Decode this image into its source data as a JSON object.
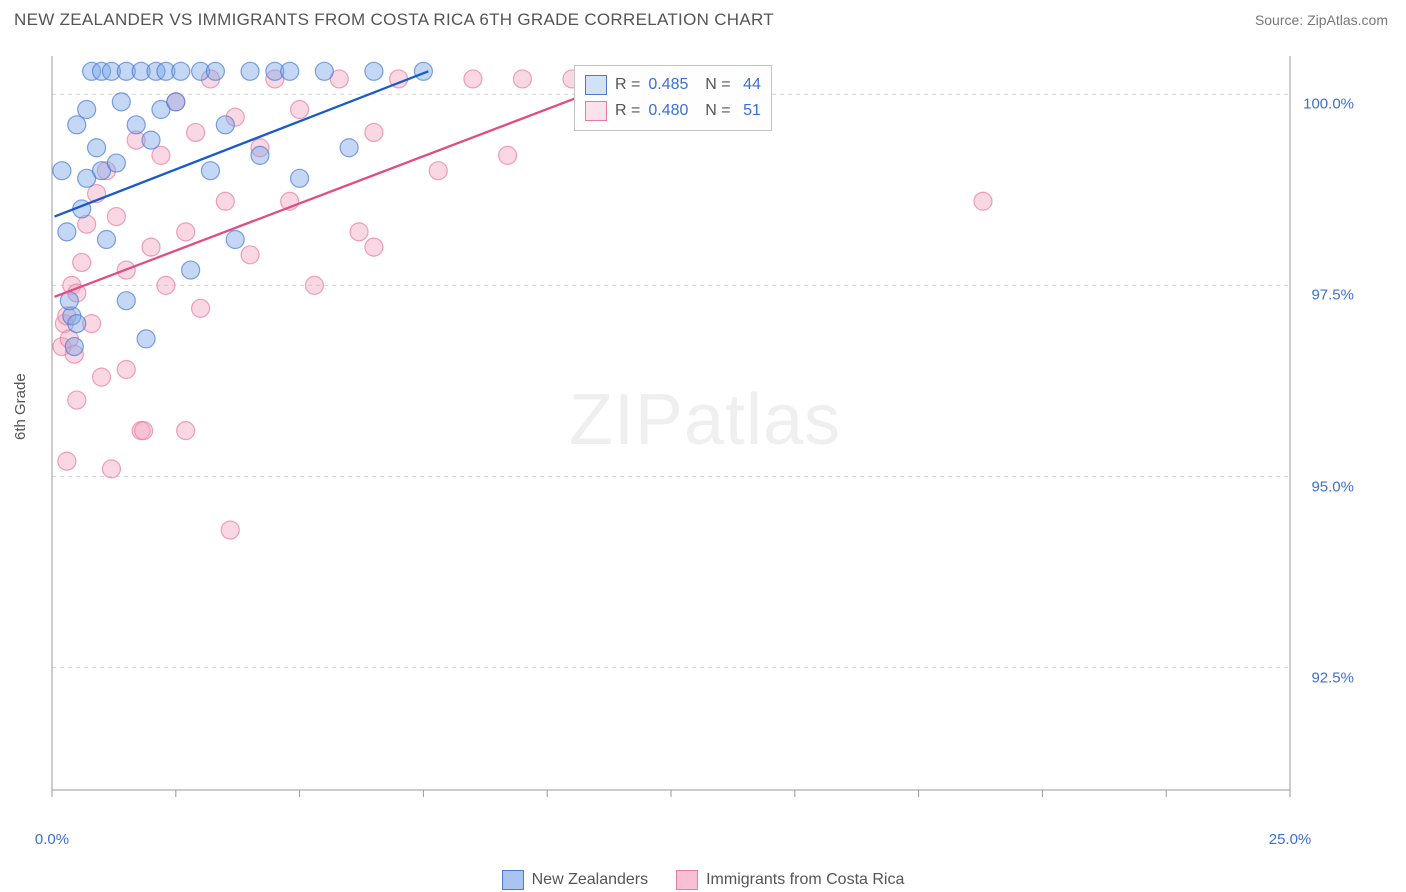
{
  "title": "NEW ZEALANDER VS IMMIGRANTS FROM COSTA RICA 6TH GRADE CORRELATION CHART",
  "source": "Source: ZipAtlas.com",
  "ylabel": "6th Grade",
  "watermark_bold": "ZIP",
  "watermark_thin": "atlas",
  "chart": {
    "type": "scatter",
    "xlim": [
      0,
      25
    ],
    "ylim": [
      90.9,
      100.5
    ],
    "ytick_labels": [
      "100.0%",
      "97.5%",
      "95.0%",
      "92.5%"
    ],
    "ytick_values": [
      100.0,
      97.5,
      95.0,
      92.5
    ],
    "xtick_values": [
      0,
      2.5,
      5,
      7.5,
      10,
      12.5,
      15,
      17.5,
      20,
      22.5,
      25
    ],
    "xtick_labels_shown": {
      "0": "0.0%",
      "25": "25.0%"
    },
    "grid_color": "#d6d6d6",
    "axis_color": "#999999",
    "background_color": "#ffffff",
    "marker_radius": 9,
    "marker_opacity": 0.45,
    "line_width": 2.3,
    "series": [
      {
        "name": "New Zealanders",
        "color_fill": "#7da9e8",
        "color_stroke": "#4a7bd0",
        "line_color": "#1959c9",
        "R": "0.485",
        "N": "44",
        "trend": {
          "x1": 0.05,
          "y1": 98.4,
          "x2": 7.6,
          "y2": 100.3
        },
        "points": [
          [
            0.2,
            99.0
          ],
          [
            0.3,
            98.2
          ],
          [
            0.4,
            97.1
          ],
          [
            0.35,
            97.3
          ],
          [
            0.45,
            96.7
          ],
          [
            0.5,
            99.6
          ],
          [
            0.5,
            97.0
          ],
          [
            0.6,
            98.5
          ],
          [
            0.7,
            98.9
          ],
          [
            0.7,
            99.8
          ],
          [
            0.8,
            100.3
          ],
          [
            0.9,
            99.3
          ],
          [
            1.0,
            100.3
          ],
          [
            1.0,
            99.0
          ],
          [
            1.1,
            98.1
          ],
          [
            1.2,
            100.3
          ],
          [
            1.3,
            99.1
          ],
          [
            1.4,
            99.9
          ],
          [
            1.5,
            100.3
          ],
          [
            1.5,
            97.3
          ],
          [
            1.7,
            99.6
          ],
          [
            1.8,
            100.3
          ],
          [
            1.9,
            96.8
          ],
          [
            2.0,
            99.4
          ],
          [
            2.1,
            100.3
          ],
          [
            2.2,
            99.8
          ],
          [
            2.3,
            100.3
          ],
          [
            2.5,
            99.9
          ],
          [
            2.6,
            100.3
          ],
          [
            2.8,
            97.7
          ],
          [
            3.0,
            100.3
          ],
          [
            3.2,
            99.0
          ],
          [
            3.3,
            100.3
          ],
          [
            3.5,
            99.6
          ],
          [
            3.7,
            98.1
          ],
          [
            4.0,
            100.3
          ],
          [
            4.2,
            99.2
          ],
          [
            4.5,
            100.3
          ],
          [
            4.8,
            100.3
          ],
          [
            5.0,
            98.9
          ],
          [
            5.5,
            100.3
          ],
          [
            6.0,
            99.3
          ],
          [
            6.5,
            100.3
          ],
          [
            7.5,
            100.3
          ]
        ]
      },
      {
        "name": "Immigrants from Costa Rica",
        "color_fill": "#f5a9c1",
        "color_stroke": "#e87ba0",
        "line_color": "#e24c84",
        "R": "0.480",
        "N": "51",
        "trend": {
          "x1": 0.05,
          "y1": 97.35,
          "x2": 12.0,
          "y2": 100.3
        },
        "points": [
          [
            0.2,
            96.7
          ],
          [
            0.25,
            97.0
          ],
          [
            0.3,
            97.1
          ],
          [
            0.35,
            96.8
          ],
          [
            0.3,
            95.2
          ],
          [
            0.4,
            97.5
          ],
          [
            0.45,
            96.6
          ],
          [
            0.5,
            97.4
          ],
          [
            0.5,
            96.0
          ],
          [
            0.6,
            97.8
          ],
          [
            0.7,
            98.3
          ],
          [
            0.8,
            97.0
          ],
          [
            0.9,
            98.7
          ],
          [
            1.0,
            96.3
          ],
          [
            1.1,
            99.0
          ],
          [
            1.2,
            95.1
          ],
          [
            1.3,
            98.4
          ],
          [
            1.5,
            97.7
          ],
          [
            1.5,
            96.4
          ],
          [
            1.7,
            99.4
          ],
          [
            1.8,
            95.6
          ],
          [
            1.85,
            95.6
          ],
          [
            2.0,
            98.0
          ],
          [
            2.2,
            99.2
          ],
          [
            2.3,
            97.5
          ],
          [
            2.5,
            99.9
          ],
          [
            2.7,
            98.2
          ],
          [
            2.7,
            95.6
          ],
          [
            2.9,
            99.5
          ],
          [
            3.0,
            97.2
          ],
          [
            3.2,
            100.2
          ],
          [
            3.5,
            98.6
          ],
          [
            3.7,
            99.7
          ],
          [
            3.6,
            94.3
          ],
          [
            4.0,
            97.9
          ],
          [
            4.2,
            99.3
          ],
          [
            4.5,
            100.2
          ],
          [
            4.8,
            98.6
          ],
          [
            5.0,
            99.8
          ],
          [
            5.3,
            97.5
          ],
          [
            5.8,
            100.2
          ],
          [
            6.2,
            98.2
          ],
          [
            6.5,
            99.5
          ],
          [
            6.5,
            98.0
          ],
          [
            7.0,
            100.2
          ],
          [
            7.8,
            99.0
          ],
          [
            8.5,
            100.2
          ],
          [
            9.2,
            99.2
          ],
          [
            9.5,
            100.2
          ],
          [
            10.5,
            100.2
          ],
          [
            18.8,
            98.6
          ]
        ]
      }
    ]
  },
  "legend_top_pos": {
    "left_pct": 40,
    "top_pct": 2
  },
  "legend_bottom": [
    {
      "label": "New Zealanders",
      "fill": "#a9c4ee",
      "stroke": "#4a7bd0"
    },
    {
      "label": "Immigrants from Costa Rica",
      "fill": "#f7c1d3",
      "stroke": "#e87ba0"
    }
  ]
}
